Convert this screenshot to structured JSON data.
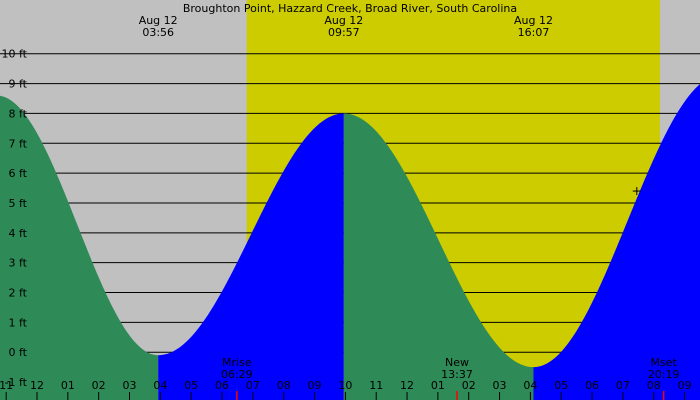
{
  "chart_data": {
    "type": "area",
    "title": "Broughton Point, Hazzard Creek, Broad River, South Carolina",
    "ylim": [
      -1.6,
      11.8
    ],
    "xlim": [
      -0.2,
      22.5
    ],
    "y_ticks": [
      -1,
      0,
      1,
      2,
      3,
      4,
      5,
      6,
      7,
      8,
      9,
      10
    ],
    "y_tick_labels": [
      "-1 ft",
      "0 ft",
      "1 ft",
      "2 ft",
      "3 ft",
      "4 ft",
      "5 ft",
      "6 ft",
      "7 ft",
      "8 ft",
      "9 ft",
      "10 ft"
    ],
    "x_ticks": [
      0,
      1,
      2,
      3,
      4,
      5,
      6,
      7,
      8,
      9,
      10,
      11,
      12,
      13,
      14,
      15,
      16,
      17,
      18,
      19,
      20,
      21,
      22
    ],
    "x_tick_labels": [
      "11",
      "12",
      "01",
      "02",
      "03",
      "04",
      "05",
      "06",
      "07",
      "08",
      "09",
      "10",
      "11",
      "12",
      "01",
      "02",
      "03",
      "04",
      "05",
      "06",
      "07",
      "08",
      "09"
    ],
    "x_tick_offset_hours": 23,
    "grid": true,
    "daylight": {
      "start": 7.8,
      "end": 21.2
    },
    "extremes": [
      {
        "t": -0.3,
        "h": 8.6,
        "type": "high"
      },
      {
        "t": 4.93,
        "h": -0.1,
        "type": "low"
      },
      {
        "t": 10.95,
        "h": 8.0,
        "type": "high"
      },
      {
        "t": 17.1,
        "h": -0.5,
        "type": "low"
      },
      {
        "t": 23.2,
        "h": 9.3,
        "type": "high"
      }
    ],
    "top_labels": [
      {
        "t": 4.93,
        "date": "Aug 12",
        "time": "03:56"
      },
      {
        "t": 10.95,
        "date": "Aug 12",
        "time": "09:57"
      },
      {
        "t": 17.1,
        "date": "Aug 12",
        "time": "16:07"
      }
    ],
    "events": [
      {
        "t": 7.48,
        "name": "Mrise",
        "time": "06:29"
      },
      {
        "t": 14.62,
        "name": "New",
        "time": "13:37"
      },
      {
        "t": 21.32,
        "name": "Mset",
        "time": "20:19"
      }
    ],
    "marker": {
      "t": 20.45,
      "h": 5.4
    },
    "colors": {
      "night": "#c0c0c0",
      "day": "#cccc00",
      "rising": "#0000ff",
      "falling": "#2e8b57",
      "grid": "#000000",
      "event_tick": "#ff0000"
    }
  }
}
